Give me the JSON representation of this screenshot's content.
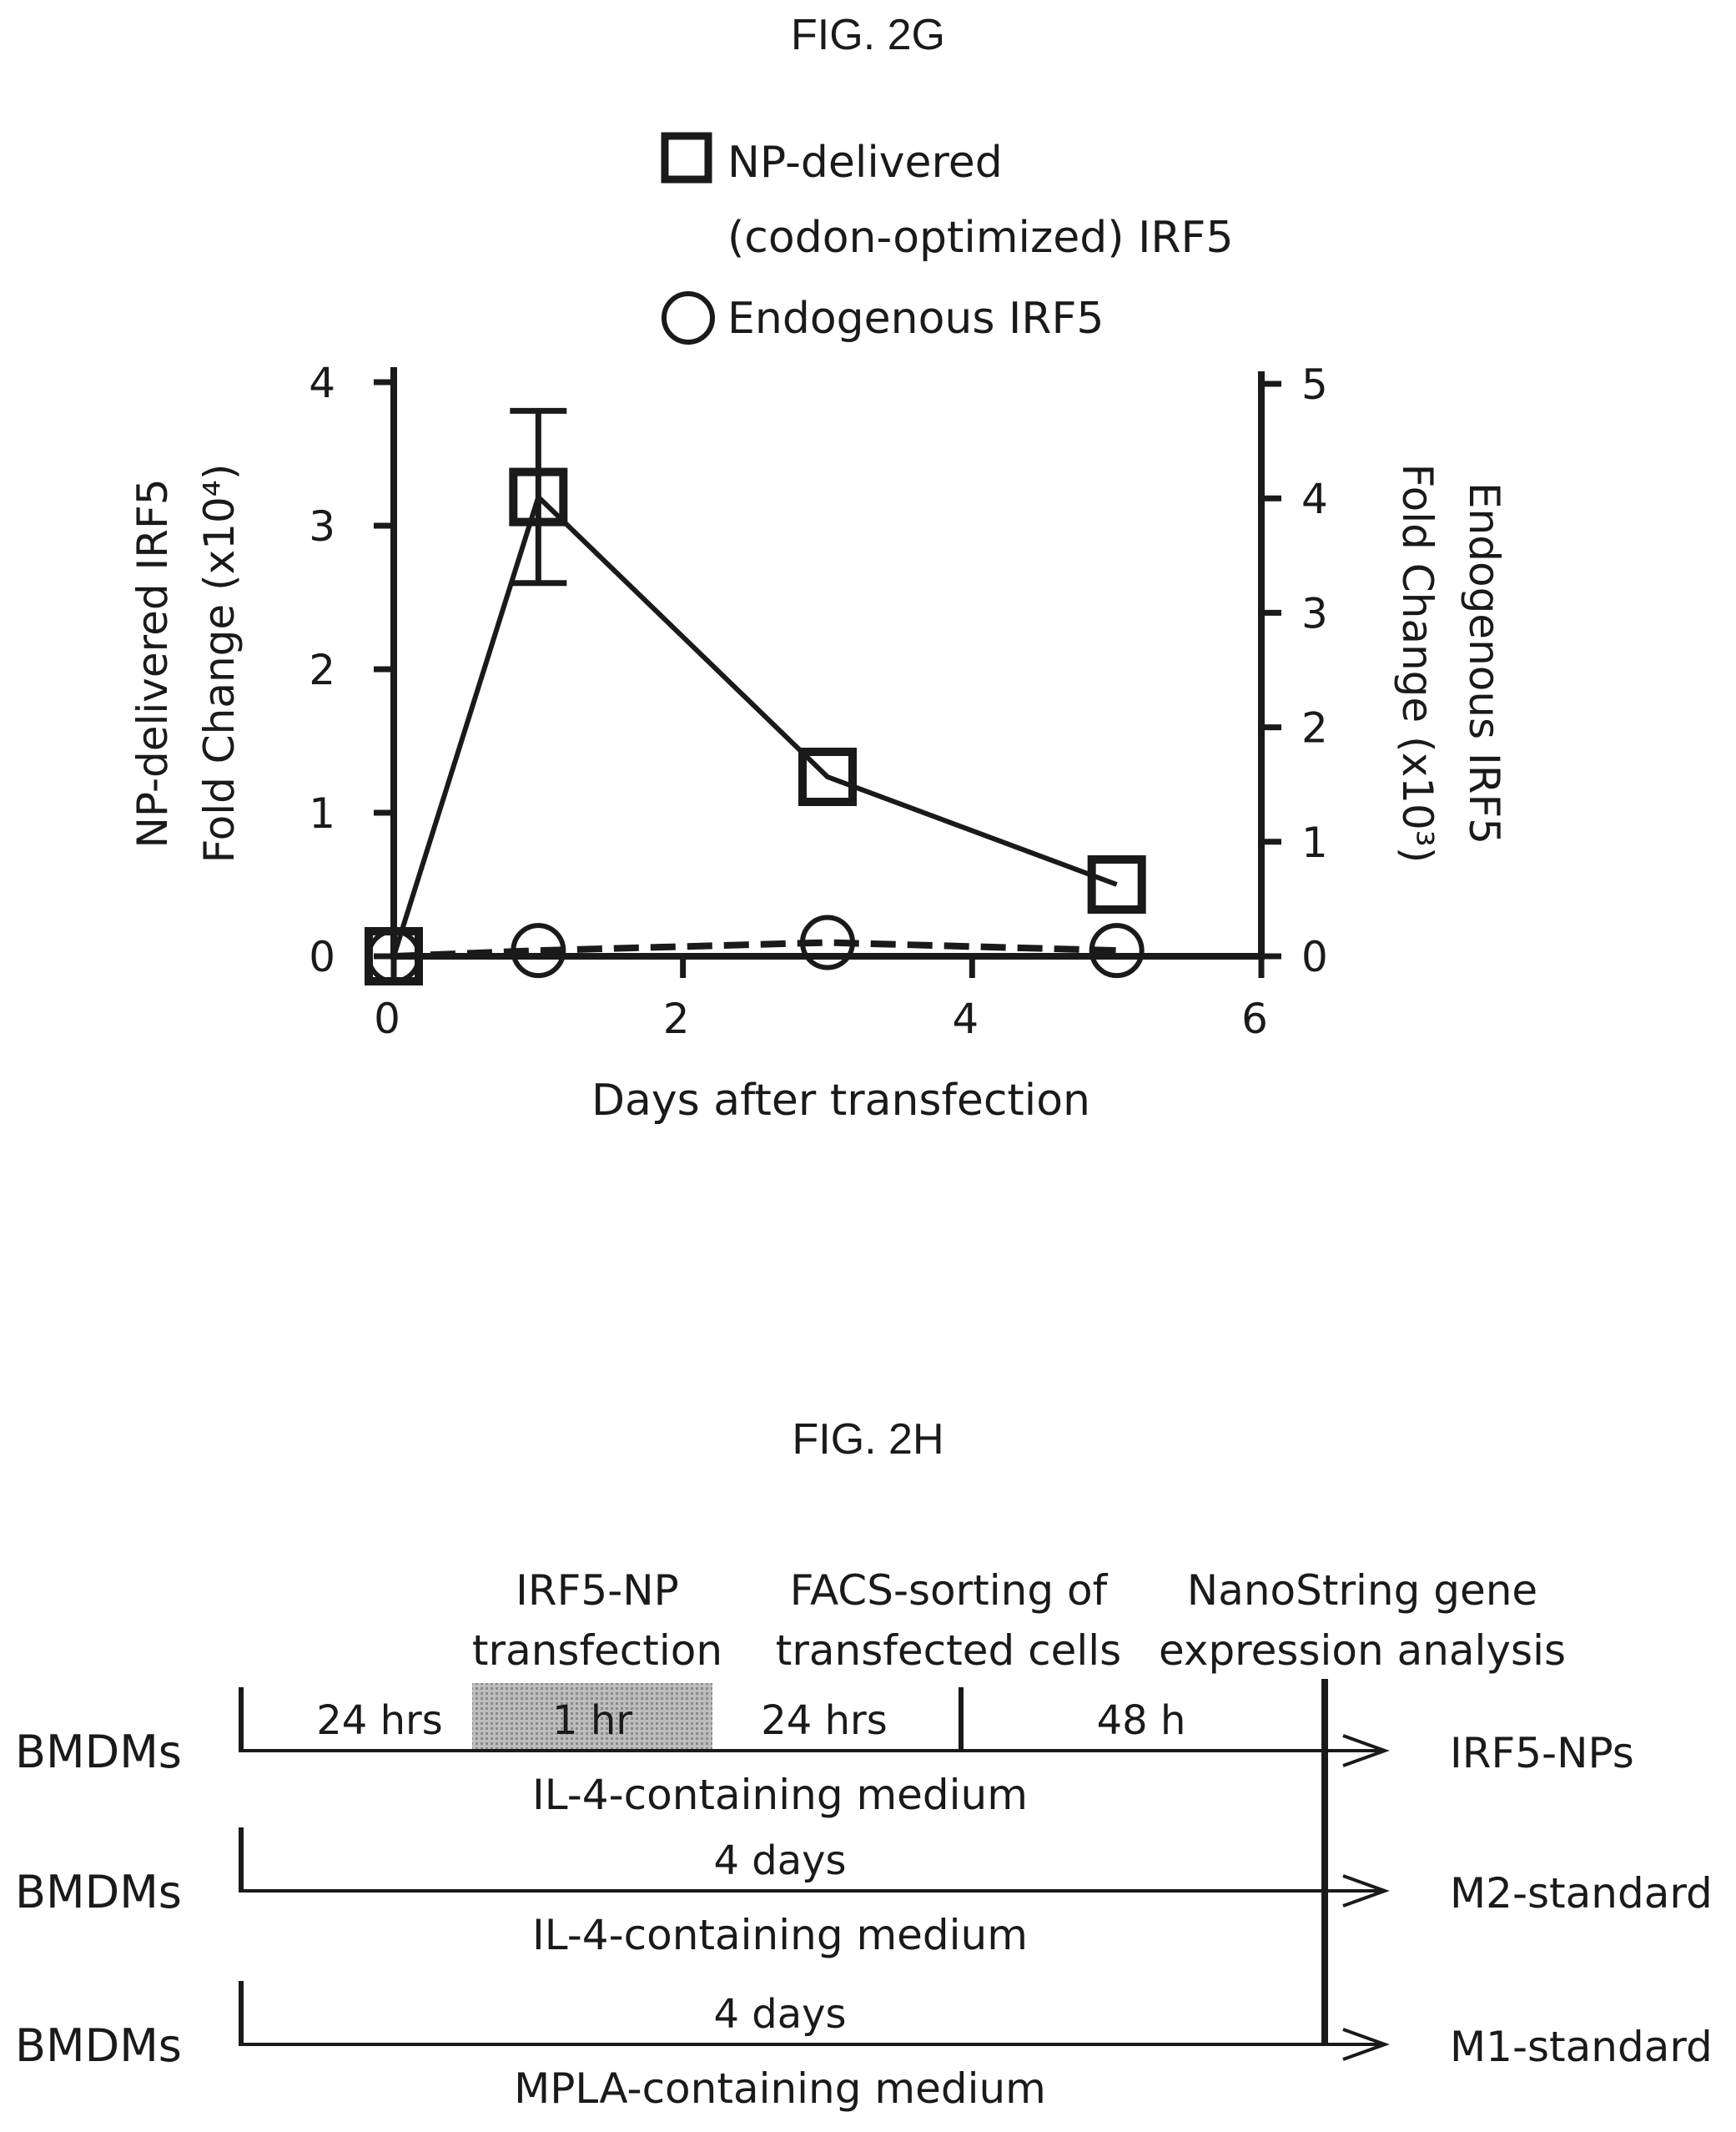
{
  "figure_2g": {
    "title": "FIG. 2G",
    "legend": {
      "square_line1": "NP-delivered",
      "square_line2": "(codon-optimized) IRF5",
      "circle": "Endogenous IRF5"
    }
  },
  "chart_data": {
    "type": "line",
    "title": "",
    "xlabel": "Days after transfection",
    "ylabel_left": [
      "NP-delivered  IRF5",
      "Fold Change  (x10⁴)"
    ],
    "ylabel_right": [
      "Endogenous IRF5",
      "Fold Change  (x10³)"
    ],
    "xlim": [
      0,
      6
    ],
    "ylim_left": [
      0,
      4
    ],
    "ylim_right": [
      0,
      5
    ],
    "x_ticks": [
      "0",
      "2",
      "4",
      "6"
    ],
    "y_ticks_left": [
      "0",
      "1",
      "2",
      "3",
      "4"
    ],
    "y_ticks_right": [
      "0",
      "1",
      "2",
      "3",
      "4",
      "5"
    ],
    "grid": false,
    "legend_position": "top",
    "series": [
      {
        "name": "NP-delivered (codon-optimized) IRF5",
        "axis": "left",
        "marker": "square",
        "line": "solid",
        "x": [
          0,
          1,
          3,
          5
        ],
        "y": [
          0,
          3.2,
          1.25,
          0.5
        ],
        "error": [
          0,
          0.6,
          0,
          0
        ]
      },
      {
        "name": "Endogenous IRF5",
        "axis": "right",
        "marker": "circle",
        "line": "dashed",
        "x": [
          0,
          1,
          3,
          5
        ],
        "y": [
          0,
          0.05,
          0.12,
          0.05
        ]
      }
    ]
  },
  "figure_2h": {
    "title": "FIG. 2H",
    "steps": {
      "step1_line1": "IRF5-NP",
      "step1_line2": "transfection",
      "step2_line1": "FACS-sorting of",
      "step2_line2": "transfected cells",
      "step3_line1": "NanoString gene",
      "step3_line2": "expression analysis"
    },
    "rows": [
      {
        "start_label": "BMDMs",
        "durations": [
          "24 hrs",
          "1 hr",
          "24 hrs",
          "48 h"
        ],
        "medium": "IL-4-containing medium",
        "end_label": "IRF5-NPs"
      },
      {
        "start_label": "BMDMs",
        "duration": "4 days",
        "medium": "IL-4-containing medium",
        "end_label": "M2-standard"
      },
      {
        "start_label": "BMDMs",
        "duration": "4 days",
        "medium": "MPLA-containing medium",
        "end_label": "M1-standard"
      }
    ]
  }
}
